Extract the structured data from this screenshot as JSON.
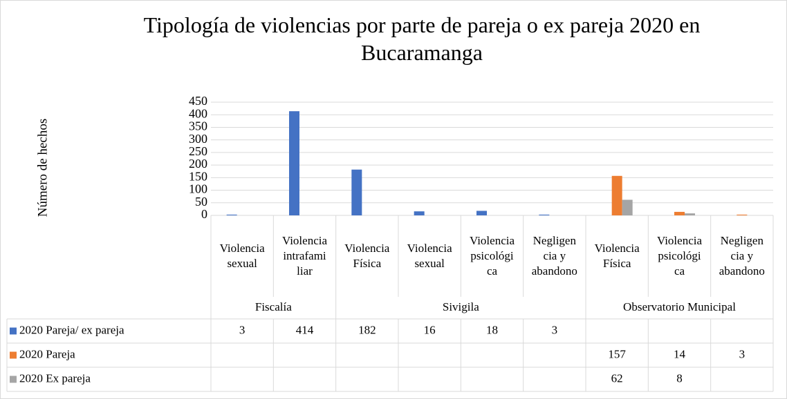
{
  "chart_data": {
    "type": "bar",
    "title": "Tipología de violencias por parte de pareja o ex pareja 2020 en Bucaramanga",
    "y_label": "Número de hechos",
    "categories": [
      "Violencia sexual",
      "Violencia intrafamiliar",
      "Violencia Física",
      "Violencia sexual",
      "Violencia psicológica",
      "Negligencia y abandono",
      "Violencia Física",
      "Violencia psicológica",
      "Negligencia y abandono"
    ],
    "category_groups": [
      "Fiscalía",
      "Fiscalía",
      "Sivigila",
      "Sivigila",
      "Sivigila",
      "Sivigila",
      "Observatorio Municipal",
      "Observatorio Municipal",
      "Observatorio Municipal"
    ],
    "series": [
      {
        "name": "2020 Pareja/ ex pareja",
        "color": "#4472c4",
        "values": [
          3,
          414,
          182,
          16,
          18,
          3,
          null,
          null,
          null
        ]
      },
      {
        "name": "2020 Pareja",
        "color": "#ed7d31",
        "values": [
          null,
          null,
          null,
          null,
          null,
          null,
          157,
          14,
          3
        ]
      },
      {
        "name": "2020 Ex pareja",
        "color": "#a5a5a5",
        "values": [
          null,
          null,
          null,
          null,
          null,
          null,
          62,
          8,
          null
        ]
      }
    ],
    "ylim": [
      0,
      450
    ],
    "yticks": [
      0,
      50,
      100,
      150,
      200,
      250,
      300,
      350,
      400,
      450
    ],
    "grid": true,
    "data_table": true
  }
}
